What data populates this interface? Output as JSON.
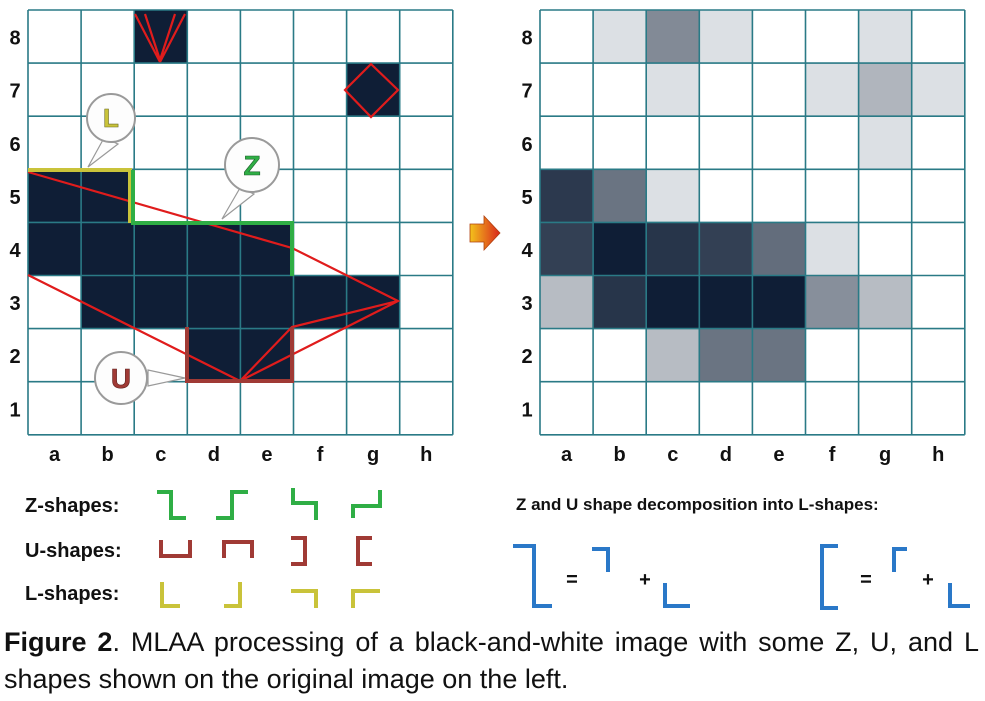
{
  "left_grid": {
    "row_labels": [
      "8",
      "7",
      "6",
      "5",
      "4",
      "3",
      "2",
      "1"
    ],
    "col_labels": [
      "a",
      "b",
      "c",
      "d",
      "e",
      "f",
      "g",
      "h"
    ],
    "filled_cells": [
      "c8",
      "g7",
      "a5",
      "b5",
      "a4",
      "b4",
      "c4",
      "d4",
      "e4",
      "b3",
      "c3",
      "d3",
      "e3",
      "f3",
      "g3",
      "d2",
      "e2"
    ],
    "callouts": [
      {
        "id": "L",
        "letter": "L",
        "color": "#c9c33a"
      },
      {
        "id": "Z",
        "letter": "Z",
        "color": "#2fae45"
      },
      {
        "id": "U",
        "letter": "U",
        "color": "#a03a35"
      }
    ],
    "colors": {
      "pixel": "#0f1e36",
      "grid": "#2a7a86",
      "edge_line": "#e01c1c"
    }
  },
  "right_grid": {
    "row_labels": [
      "8",
      "7",
      "6",
      "5",
      "4",
      "3",
      "2",
      "1"
    ],
    "col_labels": [
      "a",
      "b",
      "c",
      "d",
      "e",
      "f",
      "g",
      "h"
    ],
    "cell_values": [
      {
        "cell": "b8",
        "v": 0.15
      },
      {
        "cell": "c8",
        "v": 0.52
      },
      {
        "cell": "d8",
        "v": 0.15
      },
      {
        "cell": "g8",
        "v": 0.15
      },
      {
        "cell": "c7",
        "v": 0.15
      },
      {
        "cell": "f7",
        "v": 0.15
      },
      {
        "cell": "g7",
        "v": 0.33
      },
      {
        "cell": "h7",
        "v": 0.15
      },
      {
        "cell": "g6",
        "v": 0.15
      },
      {
        "cell": "a5",
        "v": 0.88
      },
      {
        "cell": "b5",
        "v": 0.62
      },
      {
        "cell": "c5",
        "v": 0.15
      },
      {
        "cell": "a4",
        "v": 0.85
      },
      {
        "cell": "b4",
        "v": 1.0
      },
      {
        "cell": "c4",
        "v": 0.9
      },
      {
        "cell": "d4",
        "v": 0.85
      },
      {
        "cell": "e4",
        "v": 0.65
      },
      {
        "cell": "f4",
        "v": 0.15
      },
      {
        "cell": "a3",
        "v": 0.3
      },
      {
        "cell": "b3",
        "v": 0.9
      },
      {
        "cell": "c3",
        "v": 1.0
      },
      {
        "cell": "d3",
        "v": 1.0
      },
      {
        "cell": "e3",
        "v": 1.0
      },
      {
        "cell": "f3",
        "v": 0.5
      },
      {
        "cell": "g3",
        "v": 0.3
      },
      {
        "cell": "c2",
        "v": 0.3
      },
      {
        "cell": "d2",
        "v": 0.62
      },
      {
        "cell": "e2",
        "v": 0.62
      }
    ]
  },
  "shape_legend": {
    "rows": [
      {
        "label": "Z-shapes:",
        "color": "#2fae45",
        "kind": "z"
      },
      {
        "label": "U-shapes:",
        "color": "#a03a35",
        "kind": "u"
      },
      {
        "label": "L-shapes:",
        "color": "#c9c33a",
        "kind": "l"
      }
    ]
  },
  "decomposition": {
    "title": "Z and U shape decomposition into L-shapes:",
    "equals": "=",
    "plus": "+",
    "color": "#2a78c8"
  },
  "caption": {
    "label": "Figure 2",
    "text": ". MLAA processing of a black-and-white image with some Z, U, and L shapes shown on the original image on the left."
  }
}
